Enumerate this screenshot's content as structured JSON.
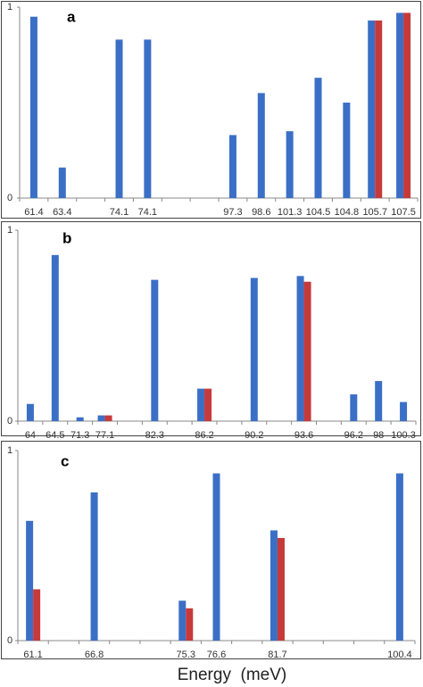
{
  "chart_data": [
    {
      "type": "bar",
      "title": "a",
      "categories": [
        "61.4",
        "63.4",
        null,
        "74.1",
        "74.1",
        null,
        null,
        "97.3",
        "98.6",
        "101.3",
        "104.5",
        "104.8",
        "105.7",
        "107.5"
      ],
      "series": [
        {
          "color": "#3b6fc6",
          "values": [
            0.95,
            0.16,
            null,
            0.83,
            0.83,
            null,
            null,
            0.33,
            0.55,
            0.35,
            0.63,
            0.5,
            0.93,
            0.97
          ]
        },
        {
          "color": "#c73a3a",
          "values": [
            null,
            null,
            null,
            null,
            null,
            null,
            null,
            null,
            null,
            null,
            null,
            null,
            0.93,
            0.97
          ]
        }
      ],
      "ylim": [
        0,
        1
      ],
      "yticks": [
        0,
        1
      ]
    },
    {
      "type": "bar",
      "title": "b",
      "categories": [
        "64",
        "64.5",
        "71.3",
        "77.1",
        null,
        "82.3",
        null,
        "86.2",
        null,
        "90.2",
        null,
        "93.6",
        null,
        "96.2",
        "98",
        "100.3"
      ],
      "series": [
        {
          "color": "#3b6fc6",
          "values": [
            0.09,
            0.87,
            0.02,
            0.03,
            null,
            0.74,
            null,
            0.17,
            null,
            0.75,
            null,
            0.76,
            null,
            0.14,
            0.21,
            0.1
          ]
        },
        {
          "color": "#c73a3a",
          "values": [
            null,
            null,
            null,
            0.03,
            null,
            null,
            null,
            0.17,
            null,
            null,
            null,
            0.73,
            null,
            null,
            null,
            null
          ]
        }
      ],
      "ylim": [
        0,
        1
      ],
      "yticks": [
        0,
        1
      ]
    },
    {
      "type": "bar",
      "title": "c",
      "categories": [
        "61.1",
        null,
        "66.8",
        null,
        null,
        "75.3",
        "76.6",
        null,
        "81.7",
        null,
        null,
        null,
        "100.4"
      ],
      "series": [
        {
          "color": "#3b6fc6",
          "values": [
            0.63,
            null,
            0.78,
            null,
            null,
            0.21,
            0.88,
            null,
            0.58,
            null,
            null,
            null,
            0.88
          ]
        },
        {
          "color": "#c73a3a",
          "values": [
            0.27,
            null,
            null,
            null,
            null,
            0.17,
            null,
            null,
            0.54,
            null,
            null,
            null,
            null
          ]
        }
      ],
      "ylim": [
        0,
        1
      ],
      "yticks": [
        0,
        1
      ],
      "x_label": "Energy  (meV)"
    }
  ]
}
